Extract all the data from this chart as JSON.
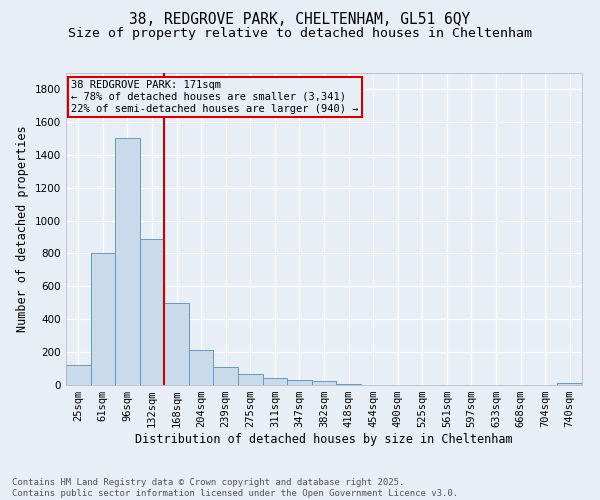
{
  "title_line1": "38, REDGROVE PARK, CHELTENHAM, GL51 6QY",
  "title_line2": "Size of property relative to detached houses in Cheltenham",
  "xlabel": "Distribution of detached houses by size in Cheltenham",
  "ylabel": "Number of detached properties",
  "categories": [
    "25sqm",
    "61sqm",
    "96sqm",
    "132sqm",
    "168sqm",
    "204sqm",
    "239sqm",
    "275sqm",
    "311sqm",
    "347sqm",
    "382sqm",
    "418sqm",
    "454sqm",
    "490sqm",
    "525sqm",
    "561sqm",
    "597sqm",
    "633sqm",
    "668sqm",
    "704sqm",
    "740sqm"
  ],
  "values": [
    120,
    800,
    1500,
    890,
    500,
    210,
    110,
    65,
    45,
    32,
    25,
    7,
    0,
    0,
    0,
    0,
    0,
    0,
    0,
    0,
    12
  ],
  "bar_color": "#c9daea",
  "bar_edge_color": "#6699bb",
  "vline_color": "#cc0000",
  "ylim": [
    0,
    1900
  ],
  "yticks": [
    0,
    200,
    400,
    600,
    800,
    1000,
    1200,
    1400,
    1600,
    1800
  ],
  "annotation_text": "38 REDGROVE PARK: 171sqm\n← 78% of detached houses are smaller (3,341)\n22% of semi-detached houses are larger (940) →",
  "annotation_box_color": "#cc0000",
  "footer_text": "Contains HM Land Registry data © Crown copyright and database right 2025.\nContains public sector information licensed under the Open Government Licence v3.0.",
  "background_color": "#e8eef5",
  "grid_color": "#ffffff",
  "title_fontsize": 10.5,
  "subtitle_fontsize": 9.5,
  "axis_label_fontsize": 8.5,
  "tick_fontsize": 7.5,
  "annotation_fontsize": 7.5,
  "footer_fontsize": 6.5
}
